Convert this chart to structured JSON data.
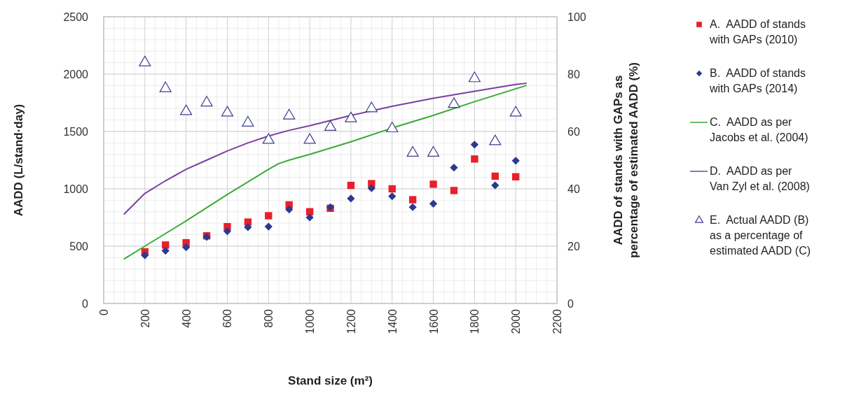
{
  "chart_data": {
    "type": "scatter",
    "xlabel": "Stand size (m²)",
    "ylabel": "AADD (L/stand·day)",
    "y2label": "AADD of stands with GAPs as percentage of estimated AADD (%)",
    "xlim": [
      0,
      2200
    ],
    "xticks": [
      0,
      200,
      400,
      600,
      800,
      1000,
      1200,
      1400,
      1600,
      1800,
      2000,
      2200
    ],
    "ylim": [
      0,
      2500
    ],
    "yticks": [
      0,
      500,
      1000,
      1500,
      2000,
      2500
    ],
    "y2lim": [
      0,
      100
    ],
    "y2ticks": [
      0,
      20,
      40,
      60,
      80,
      100
    ],
    "grid": true,
    "legend": "right",
    "series": [
      {
        "name": "A.  AADD of stands with GAPs (2010)",
        "marker": "square",
        "color": "#e8202a",
        "x": [
          200,
          300,
          400,
          500,
          600,
          700,
          800,
          900,
          1000,
          1100,
          1200,
          1300,
          1400,
          1500,
          1600,
          1700,
          1800,
          1900,
          2000
        ],
        "values": [
          450,
          510,
          530,
          590,
          670,
          710,
          765,
          860,
          800,
          830,
          1030,
          1045,
          1000,
          905,
          1040,
          985,
          1260,
          1110,
          1105
        ]
      },
      {
        "name": "B.  AADD of stands with GAPs (2014)",
        "marker": "diamond",
        "color": "#2b3990",
        "x": [
          200,
          300,
          400,
          500,
          600,
          700,
          800,
          900,
          1000,
          1100,
          1200,
          1300,
          1400,
          1500,
          1600,
          1700,
          1800,
          1900,
          2000
        ],
        "values": [
          420,
          460,
          490,
          580,
          630,
          665,
          670,
          820,
          750,
          840,
          915,
          1005,
          935,
          840,
          870,
          1185,
          1385,
          1030,
          1245
        ]
      },
      {
        "name": "C.  AADD as per Jacobs et al. (2004)",
        "type": "line",
        "marker": "none",
        "color": "#3aaa35",
        "x": [
          100,
          200,
          400,
          600,
          800,
          850,
          900,
          1000,
          1200,
          1400,
          1600,
          1800,
          2050
        ],
        "values": [
          390,
          500,
          720,
          950,
          1170,
          1220,
          1250,
          1300,
          1410,
          1530,
          1640,
          1760,
          1900
        ]
      },
      {
        "name": "D.  AADD as per Van Zyl et al. (2008)",
        "type": "line",
        "marker": "none",
        "color": "#7b3fa0",
        "x": [
          100,
          200,
          300,
          400,
          500,
          600,
          700,
          800,
          900,
          1000,
          1200,
          1400,
          1600,
          1800,
          2000,
          2050
        ],
        "values": [
          780,
          960,
          1070,
          1170,
          1250,
          1330,
          1400,
          1460,
          1510,
          1550,
          1640,
          1720,
          1790,
          1850,
          1910,
          1920
        ]
      },
      {
        "name": "E.  Actual AADD (B) as a percentage of estimated AADD (C)",
        "marker": "triangle",
        "axis": "y2",
        "color": "#3d3d8f",
        "x": [
          200,
          300,
          400,
          500,
          600,
          700,
          800,
          900,
          1000,
          1100,
          1200,
          1300,
          1400,
          1500,
          1600,
          1700,
          1800,
          1900,
          2000
        ],
        "values": [
          84,
          75,
          67,
          70,
          66.5,
          63,
          57,
          65.5,
          57,
          61.5,
          64.5,
          68,
          61,
          52.5,
          52.5,
          69.5,
          78.5,
          56.5,
          66.5
        ]
      }
    ]
  }
}
